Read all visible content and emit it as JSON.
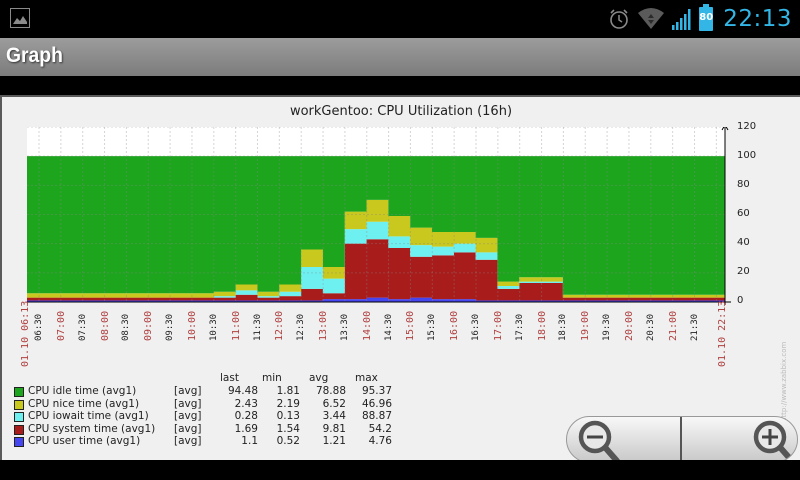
{
  "status_bar": {
    "time": "22:13",
    "battery_level": "80",
    "icons": [
      "gallery-notification-icon",
      "alarm-icon",
      "wifi-icon",
      "signal-icon",
      "battery-icon"
    ]
  },
  "action_bar": {
    "title": "Graph"
  },
  "graph": {
    "title": "workGentoo: CPU Utilization (16h)",
    "watermark": "http://www.zabbix.com",
    "y_ticks": [
      "120",
      "100",
      "80",
      "60",
      "40",
      "20",
      "0"
    ],
    "x_labels": [
      {
        "text": "01.10 06:13",
        "type": "major"
      },
      {
        "text": "06:30",
        "type": "minor"
      },
      {
        "text": "07:00",
        "type": "major"
      },
      {
        "text": "07:30",
        "type": "minor"
      },
      {
        "text": "08:00",
        "type": "major"
      },
      {
        "text": "08:30",
        "type": "minor"
      },
      {
        "text": "09:00",
        "type": "major"
      },
      {
        "text": "09:30",
        "type": "minor"
      },
      {
        "text": "10:00",
        "type": "major"
      },
      {
        "text": "10:30",
        "type": "minor"
      },
      {
        "text": "11:00",
        "type": "major"
      },
      {
        "text": "11:30",
        "type": "minor"
      },
      {
        "text": "12:00",
        "type": "major"
      },
      {
        "text": "12:30",
        "type": "minor"
      },
      {
        "text": "13:00",
        "type": "major"
      },
      {
        "text": "13:30",
        "type": "minor"
      },
      {
        "text": "14:00",
        "type": "major"
      },
      {
        "text": "14:30",
        "type": "minor"
      },
      {
        "text": "15:00",
        "type": "major"
      },
      {
        "text": "15:30",
        "type": "minor"
      },
      {
        "text": "16:00",
        "type": "major"
      },
      {
        "text": "16:30",
        "type": "minor"
      },
      {
        "text": "17:00",
        "type": "major"
      },
      {
        "text": "17:30",
        "type": "minor"
      },
      {
        "text": "18:00",
        "type": "major"
      },
      {
        "text": "18:30",
        "type": "minor"
      },
      {
        "text": "19:00",
        "type": "major"
      },
      {
        "text": "19:30",
        "type": "minor"
      },
      {
        "text": "20:00",
        "type": "major"
      },
      {
        "text": "20:30",
        "type": "minor"
      },
      {
        "text": "21:00",
        "type": "major"
      },
      {
        "text": "21:30",
        "type": "minor"
      },
      {
        "text": "01.10 22:13",
        "type": "major"
      }
    ],
    "legend": {
      "headers": {
        "last": "last",
        "min": "min",
        "avg": "avg",
        "max": "max"
      },
      "rows": [
        {
          "name": "CPU idle time (avg1)",
          "fn": "[avg]",
          "last": "94.48",
          "min": "1.81",
          "avg": "78.88",
          "max": "95.37",
          "color": "#1ea51e"
        },
        {
          "name": "CPU nice time (avg1)",
          "fn": "[avg]",
          "last": "2.43",
          "min": "2.19",
          "avg": "6.52",
          "max": "46.96",
          "color": "#c8c81e"
        },
        {
          "name": "CPU iowait time (avg1)",
          "fn": "[avg]",
          "last": "0.28",
          "min": "0.13",
          "avg": "3.44",
          "max": "88.87",
          "color": "#6ef0f0"
        },
        {
          "name": "CPU system time (avg1)",
          "fn": "[avg]",
          "last": "1.69",
          "min": "1.54",
          "avg": "9.81",
          "max": "54.2",
          "color": "#a81c1c"
        },
        {
          "name": "CPU user time (avg1)",
          "fn": "[avg]",
          "last": "1.1",
          "min": "0.52",
          "avg": "1.21",
          "max": "4.76",
          "color": "#4646f0"
        }
      ]
    }
  },
  "zoom_controls": {
    "zoom_out_label": "Zoom out",
    "zoom_in_label": "Zoom in"
  },
  "chart_data": {
    "type": "area",
    "title": "workGentoo: CPU Utilization (16h)",
    "xlabel": "",
    "ylabel": "",
    "ylim": [
      0,
      120
    ],
    "y_ticks": [
      0,
      20,
      40,
      60,
      80,
      100,
      120
    ],
    "grid": true,
    "legend_position": "bottom",
    "stacked": true,
    "x": [
      "06:13",
      "07:00",
      "08:00",
      "09:00",
      "10:00",
      "10:30",
      "11:00",
      "11:30",
      "12:00",
      "12:30",
      "13:00",
      "13:30",
      "14:00",
      "14:30",
      "15:00",
      "15:30",
      "16:00",
      "16:30",
      "17:00",
      "17:30",
      "18:00",
      "18:30",
      "19:00",
      "20:00",
      "21:00",
      "22:13"
    ],
    "series": [
      {
        "name": "CPU user time (avg1)",
        "color": "#4646f0",
        "values": [
          1,
          1,
          1,
          1,
          1,
          1,
          1,
          1,
          1,
          1,
          2,
          2,
          3,
          2,
          3,
          2,
          2,
          1,
          1,
          1,
          1,
          1,
          1,
          1,
          1,
          1
        ]
      },
      {
        "name": "CPU system time (avg1)",
        "color": "#a81c1c",
        "values": [
          2,
          2,
          2,
          2,
          2,
          2,
          4,
          2,
          3,
          8,
          4,
          38,
          40,
          35,
          28,
          30,
          32,
          28,
          8,
          12,
          12,
          2,
          2,
          2,
          2,
          2
        ]
      },
      {
        "name": "CPU iowait time (avg1)",
        "color": "#6ef0f0",
        "values": [
          0,
          0,
          0,
          0,
          0,
          1,
          3,
          1,
          3,
          15,
          10,
          10,
          12,
          8,
          8,
          6,
          6,
          5,
          2,
          1,
          1,
          0,
          0,
          0,
          0,
          0
        ]
      },
      {
        "name": "CPU nice time (avg1)",
        "color": "#c8c81e",
        "values": [
          3,
          3,
          3,
          3,
          3,
          3,
          4,
          3,
          5,
          12,
          8,
          12,
          15,
          14,
          12,
          10,
          8,
          10,
          3,
          3,
          3,
          2,
          2,
          2,
          2,
          2
        ]
      },
      {
        "name": "CPU idle time (avg1)",
        "color": "#1ea51e",
        "values": [
          94,
          94,
          94,
          94,
          94,
          93,
          88,
          93,
          88,
          64,
          76,
          38,
          30,
          41,
          49,
          52,
          52,
          56,
          86,
          83,
          83,
          95,
          95,
          95,
          95,
          94
        ]
      }
    ],
    "stats": {
      "CPU idle time (avg1)": {
        "last": 94.48,
        "min": 1.81,
        "avg": 78.88,
        "max": 95.37
      },
      "CPU nice time (avg1)": {
        "last": 2.43,
        "min": 2.19,
        "avg": 6.52,
        "max": 46.96
      },
      "CPU iowait time (avg1)": {
        "last": 0.28,
        "min": 0.13,
        "avg": 3.44,
        "max": 88.87
      },
      "CPU system time (avg1)": {
        "last": 1.69,
        "min": 1.54,
        "avg": 9.81,
        "max": 54.2
      },
      "CPU user time (avg1)": {
        "last": 1.1,
        "min": 0.52,
        "avg": 1.21,
        "max": 4.76
      }
    }
  }
}
